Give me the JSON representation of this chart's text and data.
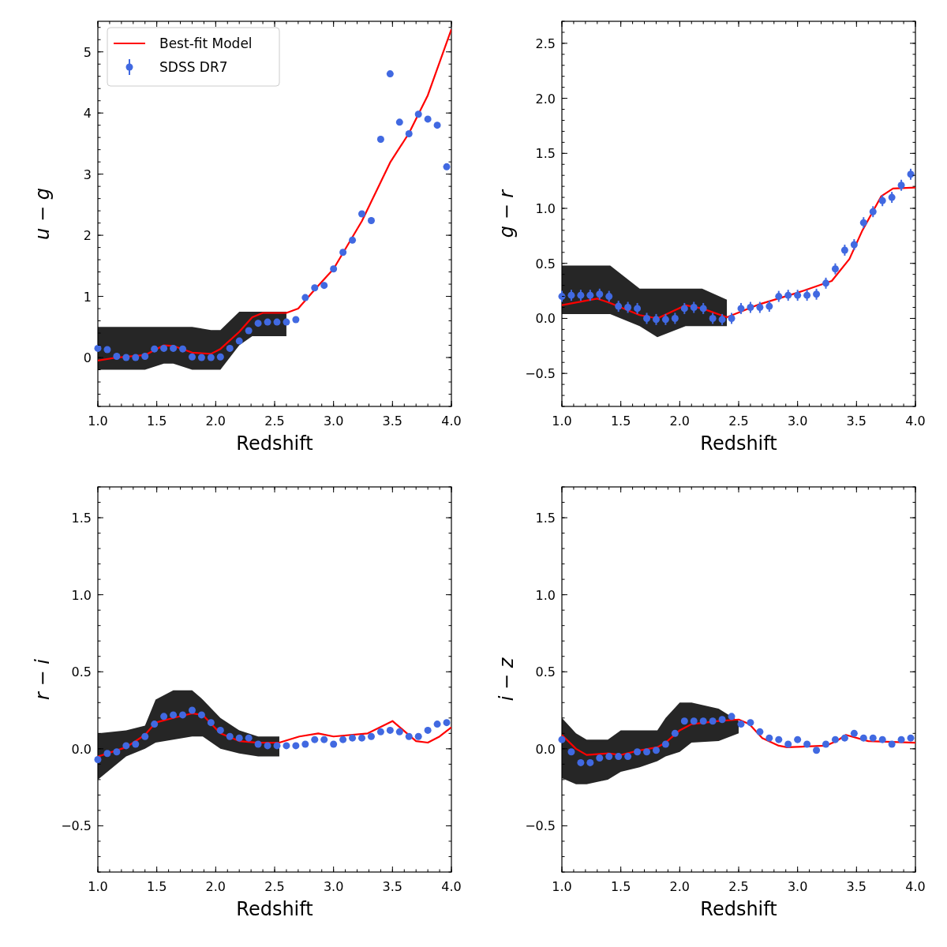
{
  "chart_data": [
    {
      "type": "scatter",
      "xlabel": "Redshift",
      "ylabel": "u − g",
      "xlim": [
        1,
        4
      ],
      "ylim": [
        -0.8,
        5.5
      ],
      "legend": "top left",
      "xticks": [
        {
          "value": 1,
          "label": "1.0"
        },
        {
          "value": 1.5,
          "label": "1.5"
        },
        {
          "value": 2,
          "label": "2.0"
        },
        {
          "value": 2.5,
          "label": "2.5"
        },
        {
          "value": 3,
          "label": "3.0"
        },
        {
          "value": 3.5,
          "label": "3.5"
        },
        {
          "value": 4,
          "label": "4.0"
        }
      ],
      "yticks": [
        0,
        1,
        2,
        3,
        4,
        5
      ],
      "series": [
        {
          "name": "Best-fit Model",
          "type": "line",
          "color": "#ff0000",
          "x": [
            1,
            1.16,
            1.4,
            1.56,
            1.64,
            1.8,
            1.96,
            2.04,
            2.2,
            2.31,
            2.4,
            2.6,
            2.7,
            2.84,
            3,
            3.24,
            3.48,
            3.64,
            3.8,
            4
          ],
          "values": [
            -0.05,
            0,
            0.04,
            0.2,
            0.19,
            0.08,
            0.06,
            0.14,
            0.42,
            0.66,
            0.73,
            0.73,
            0.8,
            1.11,
            1.45,
            2.23,
            3.19,
            3.67,
            4.29,
            5.37
          ],
          "lower": [
            -0.2,
            -0.2,
            -0.2,
            -0.1,
            -0.1,
            -0.2,
            -0.2,
            -0.2,
            0.2,
            0.35,
            0.35,
            0.35,
            null,
            null,
            null,
            null,
            null,
            null,
            null,
            null
          ],
          "upper": [
            0.5,
            0.5,
            0.5,
            0.5,
            0.5,
            0.5,
            0.45,
            0.45,
            0.75,
            0.75,
            0.75,
            0.75,
            null,
            null,
            null,
            null,
            null,
            null,
            null,
            null
          ]
        },
        {
          "name": "SDSS DR7",
          "type": "scatter",
          "color": "#4169e1",
          "marker": "circle",
          "x": [
            1,
            1.08,
            1.16,
            1.24,
            1.32,
            1.4,
            1.48,
            1.56,
            1.64,
            1.72,
            1.8,
            1.88,
            1.96,
            2.04,
            2.12,
            2.2,
            2.28,
            2.36,
            2.44,
            2.52,
            2.6,
            2.68,
            2.76,
            2.84,
            2.92,
            3,
            3.08,
            3.16,
            3.24,
            3.32,
            3.4,
            3.48,
            3.56,
            3.64,
            3.72,
            3.8,
            3.88,
            3.96
          ],
          "values": [
            0.15,
            0.13,
            0.02,
            0.0,
            0.0,
            0.02,
            0.14,
            0.15,
            0.15,
            0.14,
            0.01,
            0.0,
            0.0,
            0.01,
            0.15,
            0.27,
            0.44,
            0.56,
            0.58,
            0.58,
            0.58,
            0.62,
            0.98,
            1.14,
            1.18,
            1.45,
            1.72,
            1.92,
            2.35,
            2.24,
            3.57,
            4.64,
            3.85,
            3.66,
            3.98,
            3.9,
            3.8,
            3.12
          ],
          "errors": [
            0.05,
            0.05,
            0.05,
            0.05,
            0.05,
            0.05,
            0.05,
            0.05,
            0.05,
            0.05,
            0.05,
            0.05,
            0.05,
            0.05,
            0.05,
            0.05,
            0.05,
            0.05,
            0.05,
            0.05,
            0.05,
            0.05,
            0.05,
            0.05,
            0.05,
            0.05,
            0.05,
            0.05,
            0.05,
            0.05,
            0.05,
            0.05,
            0.05,
            0.05,
            0.05,
            0.05,
            0.05,
            0.05
          ]
        }
      ]
    },
    {
      "type": "scatter",
      "xlabel": "Redshift",
      "ylabel": "g − r",
      "xlim": [
        1,
        4
      ],
      "ylim": [
        -0.8,
        2.7
      ],
      "xticks": [
        {
          "value": 1,
          "label": "1.0"
        },
        {
          "value": 1.5,
          "label": "1.5"
        },
        {
          "value": 2,
          "label": "2.0"
        },
        {
          "value": 2.5,
          "label": "2.5"
        },
        {
          "value": 3,
          "label": "3.0"
        },
        {
          "value": 3.5,
          "label": "3.5"
        },
        {
          "value": 4,
          "label": "4.0"
        }
      ],
      "yticks": [
        {
          "value": -0.5,
          "label": "−0.5"
        },
        {
          "value": 0,
          "label": "0.0"
        },
        {
          "value": 0.5,
          "label": "0.5"
        },
        {
          "value": 1,
          "label": "1.0"
        },
        {
          "value": 1.5,
          "label": "1.5"
        },
        {
          "value": 2,
          "label": "2.0"
        },
        {
          "value": 2.5,
          "label": "2.5"
        }
      ],
      "series": [
        {
          "type": "line",
          "color": "#ff0000",
          "x": [
            1,
            1.3,
            1.41,
            1.66,
            1.81,
            2.05,
            2.19,
            2.4,
            2.68,
            2.99,
            3.29,
            3.44,
            3.55,
            3.71,
            3.81,
            4
          ],
          "values": [
            0.12,
            0.18,
            0.14,
            0.03,
            0,
            0.12,
            0.09,
            0.01,
            0.13,
            0.23,
            0.34,
            0.54,
            0.8,
            1.11,
            1.18,
            1.19
          ],
          "lower": [
            0.04,
            0.04,
            0.04,
            -0.07,
            -0.17,
            -0.07,
            -0.07,
            -0.07,
            null,
            null,
            null,
            null,
            null,
            null,
            null,
            null
          ],
          "upper": [
            0.48,
            0.48,
            0.48,
            0.27,
            0.27,
            0.27,
            0.27,
            0.17,
            null,
            null,
            null,
            null,
            null,
            null,
            null,
            null
          ]
        },
        {
          "type": "scatter",
          "color": "#4169e1",
          "marker": "circle",
          "x": [
            1,
            1.08,
            1.16,
            1.24,
            1.32,
            1.4,
            1.48,
            1.56,
            1.64,
            1.72,
            1.8,
            1.88,
            1.96,
            2.04,
            2.12,
            2.2,
            2.28,
            2.36,
            2.44,
            2.52,
            2.6,
            2.68,
            2.76,
            2.84,
            2.92,
            3,
            3.08,
            3.16,
            3.24,
            3.32,
            3.4,
            3.48,
            3.56,
            3.64,
            3.72,
            3.8,
            3.88,
            3.96
          ],
          "values": [
            0.2,
            0.21,
            0.21,
            0.21,
            0.22,
            0.2,
            0.11,
            0.1,
            0.09,
            0.0,
            -0.01,
            -0.01,
            0.0,
            0.09,
            0.1,
            0.09,
            0.0,
            -0.01,
            0.0,
            0.09,
            0.1,
            0.1,
            0.11,
            0.2,
            0.21,
            0.21,
            0.21,
            0.22,
            0.32,
            0.45,
            0.62,
            0.67,
            0.87,
            0.97,
            1.07,
            1.1,
            1.21,
            1.31
          ],
          "errors": [
            0.05,
            0.05,
            0.05,
            0.05,
            0.05,
            0.05,
            0.05,
            0.05,
            0.05,
            0.05,
            0.05,
            0.05,
            0.05,
            0.05,
            0.05,
            0.05,
            0.05,
            0.05,
            0.05,
            0.05,
            0.05,
            0.05,
            0.05,
            0.05,
            0.05,
            0.05,
            0.05,
            0.05,
            0.05,
            0.05,
            0.05,
            0.05,
            0.05,
            0.05,
            0.05,
            0.05,
            0.05,
            0.05
          ]
        }
      ]
    },
    {
      "type": "scatter",
      "xlabel": "Redshift",
      "ylabel": "r − i",
      "xlim": [
        1,
        4
      ],
      "ylim": [
        -0.8,
        1.7
      ],
      "xticks": [
        {
          "value": 1,
          "label": "1.0"
        },
        {
          "value": 1.5,
          "label": "1.5"
        },
        {
          "value": 2,
          "label": "2.0"
        },
        {
          "value": 2.5,
          "label": "2.5"
        },
        {
          "value": 3,
          "label": "3.0"
        },
        {
          "value": 3.5,
          "label": "3.5"
        },
        {
          "value": 4,
          "label": "4.0"
        }
      ],
      "yticks": [
        {
          "value": -0.5,
          "label": "−0.5"
        },
        {
          "value": 0,
          "label": "0.0"
        },
        {
          "value": 0.5,
          "label": "0.5"
        },
        {
          "value": 1,
          "label": "1.0"
        },
        {
          "value": 1.5,
          "label": "1.5"
        }
      ],
      "series": [
        {
          "type": "line",
          "color": "#ff0000",
          "x": [
            1,
            1.24,
            1.4,
            1.49,
            1.64,
            1.8,
            1.89,
            2.04,
            2.2,
            2.36,
            2.54,
            2.71,
            2.87,
            3,
            3.29,
            3.5,
            3.7,
            3.8,
            3.9,
            4
          ],
          "values": [
            -0.05,
            0.01,
            0.09,
            0.17,
            0.2,
            0.23,
            0.22,
            0.1,
            0.05,
            0.04,
            0.04,
            0.08,
            0.1,
            0.08,
            0.1,
            0.18,
            0.05,
            0.04,
            0.08,
            0.14
          ],
          "lower": [
            -0.2,
            -0.05,
            0,
            0.04,
            0.06,
            0.08,
            0.08,
            0,
            -0.03,
            -0.05,
            -0.05,
            null,
            null,
            null,
            null,
            null,
            null,
            null,
            null,
            null
          ],
          "upper": [
            0.1,
            0.12,
            0.15,
            0.32,
            0.38,
            0.38,
            0.32,
            0.2,
            0.12,
            0.08,
            0.08,
            null,
            null,
            null,
            null,
            null,
            null,
            null,
            null,
            null
          ]
        },
        {
          "type": "scatter",
          "color": "#4169e1",
          "marker": "circle",
          "x": [
            1,
            1.08,
            1.16,
            1.24,
            1.32,
            1.4,
            1.48,
            1.56,
            1.64,
            1.72,
            1.8,
            1.88,
            1.96,
            2.04,
            2.12,
            2.2,
            2.28,
            2.36,
            2.44,
            2.52,
            2.6,
            2.68,
            2.76,
            2.84,
            2.92,
            3,
            3.08,
            3.16,
            3.24,
            3.32,
            3.4,
            3.48,
            3.56,
            3.64,
            3.72,
            3.8,
            3.88,
            3.96
          ],
          "values": [
            -0.07,
            -0.03,
            -0.02,
            0.02,
            0.03,
            0.08,
            0.16,
            0.21,
            0.22,
            0.22,
            0.25,
            0.22,
            0.17,
            0.12,
            0.08,
            0.07,
            0.07,
            0.03,
            0.02,
            0.02,
            0.02,
            0.02,
            0.03,
            0.06,
            0.06,
            0.03,
            0.06,
            0.07,
            0.07,
            0.08,
            0.11,
            0.12,
            0.11,
            0.08,
            0.08,
            0.12,
            0.16,
            0.17
          ]
        }
      ]
    },
    {
      "type": "scatter",
      "xlabel": "Redshift",
      "ylabel": "i − z",
      "xlim": [
        1,
        4
      ],
      "ylim": [
        -0.8,
        1.7
      ],
      "xticks": [
        {
          "value": 1,
          "label": "1.0"
        },
        {
          "value": 1.5,
          "label": "1.5"
        },
        {
          "value": 2,
          "label": "2.0"
        },
        {
          "value": 2.5,
          "label": "2.5"
        },
        {
          "value": 3,
          "label": "3.0"
        },
        {
          "value": 3.5,
          "label": "3.5"
        },
        {
          "value": 4,
          "label": "4.0"
        }
      ],
      "yticks": [
        {
          "value": -0.5,
          "label": "−0.5"
        },
        {
          "value": 0,
          "label": "0.0"
        },
        {
          "value": 0.5,
          "label": "0.5"
        },
        {
          "value": 1,
          "label": "1.0"
        },
        {
          "value": 1.5,
          "label": "1.5"
        }
      ],
      "series": [
        {
          "type": "line",
          "color": "#ff0000",
          "x": [
            1,
            1.12,
            1.21,
            1.39,
            1.5,
            1.66,
            1.81,
            1.88,
            2,
            2.1,
            2.33,
            2.5,
            2.59,
            2.7,
            2.84,
            2.91,
            3.24,
            3.33,
            3.41,
            3.6,
            4
          ],
          "values": [
            0.09,
            0,
            -0.04,
            -0.03,
            -0.04,
            -0.01,
            0.01,
            0.04,
            0.12,
            0.16,
            0.18,
            0.19,
            0.16,
            0.07,
            0.02,
            0.01,
            0.02,
            0.05,
            0.09,
            0.05,
            0.04
          ],
          "lower": [
            -0.19,
            -0.23,
            -0.23,
            -0.2,
            -0.15,
            -0.12,
            -0.08,
            -0.05,
            -0.02,
            0.04,
            0.05,
            0.1,
            null,
            null,
            null,
            null,
            null,
            null,
            null,
            null,
            null
          ],
          "upper": [
            0.2,
            0.1,
            0.06,
            0.06,
            0.12,
            0.12,
            0.12,
            0.2,
            0.3,
            0.3,
            0.26,
            0.18,
            null,
            null,
            null,
            null,
            null,
            null,
            null,
            null,
            null
          ]
        },
        {
          "type": "scatter",
          "color": "#4169e1",
          "marker": "circle",
          "x": [
            1,
            1.08,
            1.16,
            1.24,
            1.32,
            1.4,
            1.48,
            1.56,
            1.64,
            1.72,
            1.8,
            1.88,
            1.96,
            2.04,
            2.12,
            2.2,
            2.28,
            2.36,
            2.44,
            2.52,
            2.6,
            2.68,
            2.76,
            2.84,
            2.92,
            3,
            3.08,
            3.16,
            3.24,
            3.32,
            3.4,
            3.48,
            3.56,
            3.64,
            3.72,
            3.8,
            3.88,
            3.96
          ],
          "values": [
            0.06,
            -0.02,
            -0.09,
            -0.09,
            -0.06,
            -0.05,
            -0.05,
            -0.05,
            -0.02,
            -0.02,
            -0.01,
            0.03,
            0.1,
            0.18,
            0.18,
            0.18,
            0.18,
            0.19,
            0.21,
            0.16,
            0.17,
            0.11,
            0.07,
            0.06,
            0.03,
            0.06,
            0.03,
            -0.01,
            0.03,
            0.06,
            0.07,
            0.1,
            0.07,
            0.07,
            0.06,
            0.03,
            0.06,
            0.07
          ]
        }
      ]
    }
  ]
}
